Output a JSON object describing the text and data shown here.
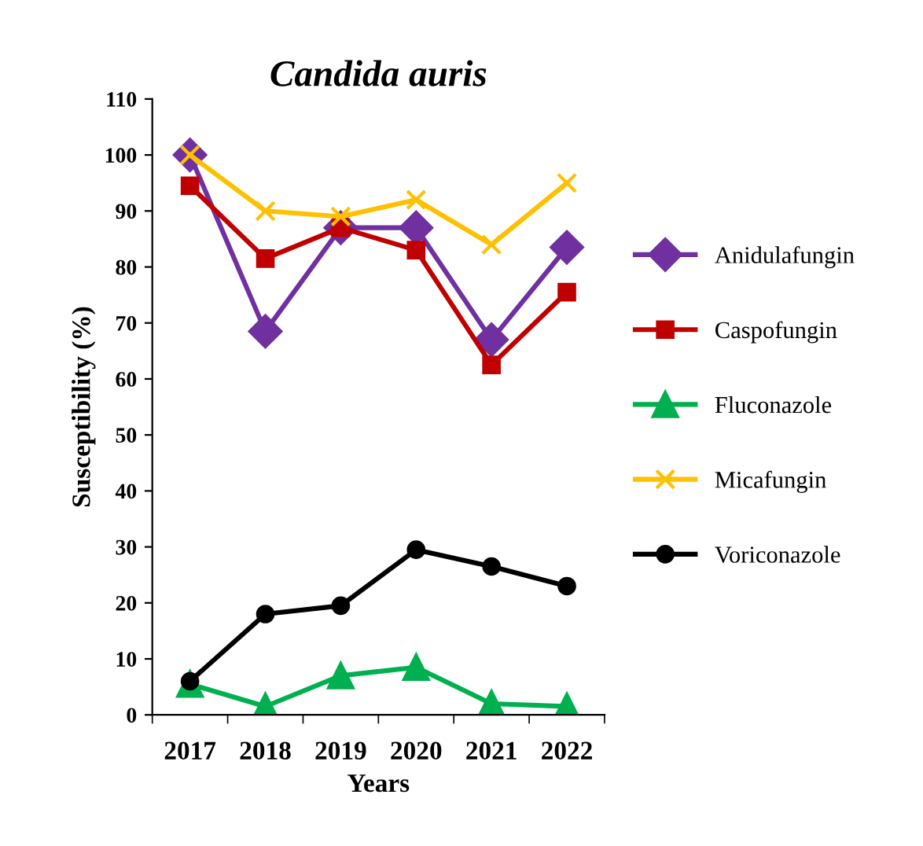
{
  "chart_data": {
    "type": "line",
    "title": "Candida auris",
    "xlabel": "Years",
    "ylabel": "Susceptibility (%)",
    "categories": [
      "2017",
      "2018",
      "2019",
      "2020",
      "2021",
      "2022"
    ],
    "series": [
      {
        "name": "Anidulafungin",
        "color": "#7030a0",
        "marker": "diamond",
        "values": [
          100,
          68.5,
          87,
          87,
          67,
          83.5
        ]
      },
      {
        "name": "Caspofungin",
        "color": "#c00000",
        "marker": "square",
        "values": [
          94.5,
          81.5,
          87,
          83,
          62.5,
          75.5
        ]
      },
      {
        "name": "Fluconazole",
        "color": "#00b050",
        "marker": "triangle",
        "values": [
          5.5,
          1.5,
          7,
          8.5,
          2,
          1.5
        ]
      },
      {
        "name": "Micafungin",
        "color": "#ffc000",
        "marker": "cross",
        "values": [
          100,
          90,
          89,
          92,
          84,
          95
        ]
      },
      {
        "name": "Voriconazole",
        "color": "#000000",
        "marker": "circle",
        "values": [
          6,
          18,
          19.5,
          29.5,
          26.5,
          23
        ]
      }
    ],
    "ylim": [
      0,
      110
    ],
    "yticks": [
      0,
      10,
      20,
      30,
      40,
      50,
      60,
      70,
      80,
      90,
      100,
      110
    ],
    "grid": false,
    "legend": "right",
    "line_style": "solid"
  }
}
